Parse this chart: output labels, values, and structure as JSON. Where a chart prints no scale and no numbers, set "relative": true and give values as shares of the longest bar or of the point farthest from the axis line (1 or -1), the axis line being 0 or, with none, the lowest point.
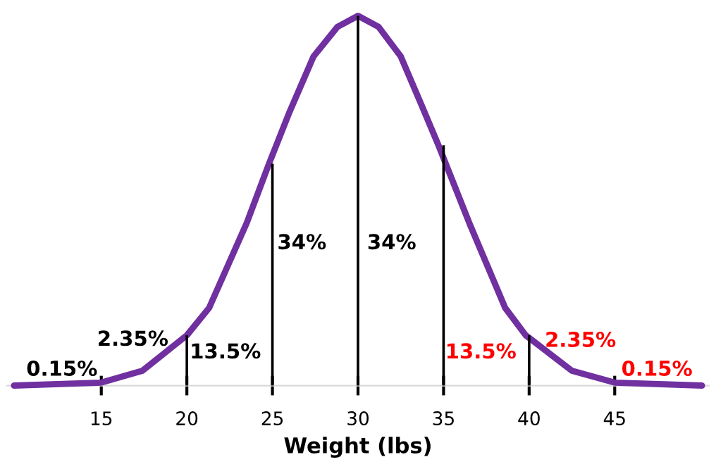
{
  "chart_data": {
    "type": "line",
    "relative": true,
    "xlabel": "Weight (lbs)",
    "xlim": [
      9.5,
      50.5
    ],
    "xticks": [
      15,
      20,
      25,
      30,
      35,
      40,
      45
    ],
    "grid": false,
    "marker": "none",
    "line_style": "solid",
    "tick_labels": "x",
    "series": [
      {
        "color": "#7030a0",
        "x": [
          9.9,
          15,
          17.4,
          20,
          21.3,
          23.5,
          24.8,
          26,
          27.4,
          28.8,
          30,
          31.2,
          32.5,
          33.7,
          34.7,
          36.5,
          38.6,
          39.8,
          42.5,
          45,
          50.1
        ],
        "values": [
          0,
          0.008,
          0.04,
          0.136,
          0.21,
          0.44,
          0.6,
          0.74,
          0.89,
          0.97,
          1,
          0.97,
          0.89,
          0.76,
          0.65,
          0.44,
          0.21,
          0.136,
          0.04,
          0.008,
          0
        ]
      },
      {
        "type": "bar",
        "color": "#000000",
        "x": [
          20,
          25,
          30,
          35,
          40
        ],
        "values": [
          0.136,
          0.6,
          1,
          0.65,
          0.136
        ]
      }
    ],
    "annotations": [
      "0.15%",
      "2.35%",
      "13.5%",
      "34%",
      "34%",
      "13.5%",
      "2.35%",
      "0.15%"
    ]
  }
}
